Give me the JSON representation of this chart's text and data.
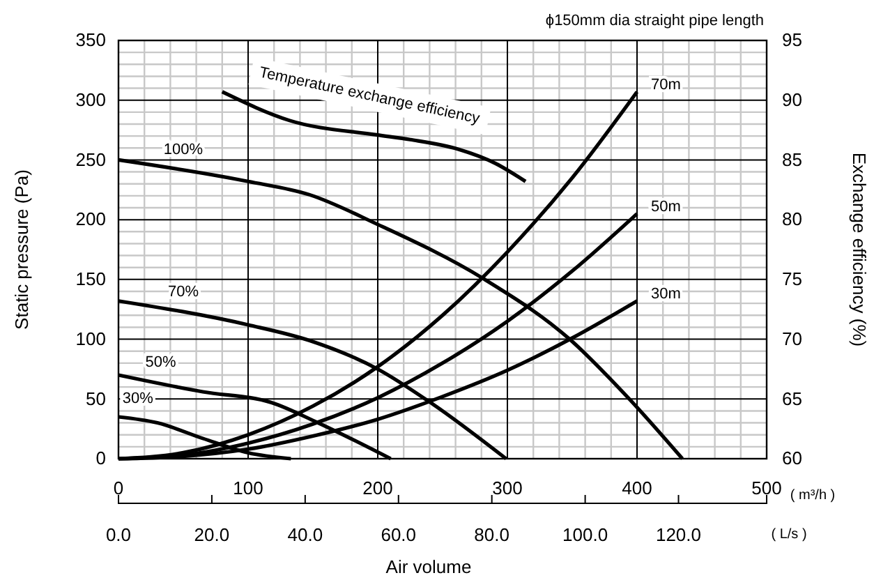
{
  "chart_data": {
    "type": "line",
    "title": "ϕ150mm dia straight pipe length",
    "xlabel": "Air volume",
    "ylabel": "Static pressure (Pa)",
    "y2label": "Exchange efficiency (%)",
    "x2label": "( L/s )",
    "annotations": [
      "( m³/h )"
    ],
    "xlim": [
      0,
      500
    ],
    "xticks": [
      0,
      100,
      200,
      300,
      400,
      500
    ],
    "ylim": [
      0,
      350
    ],
    "yticks": [
      0,
      50,
      100,
      150,
      200,
      250,
      300,
      350
    ],
    "y2lim": [
      60,
      95
    ],
    "y2ticks": [
      60,
      65,
      70,
      75,
      80,
      85,
      90,
      95
    ],
    "x2lim": [
      0,
      138.89
    ],
    "x2ticks": [
      {
        "value": 0,
        "label": "0.0"
      },
      {
        "value": 20,
        "label": "20.0"
      },
      {
        "value": 40,
        "label": "40.0"
      },
      {
        "value": 60,
        "label": "60.0"
      },
      {
        "value": 80,
        "label": "80.0"
      },
      {
        "value": 100,
        "label": "100.0"
      },
      {
        "value": 120,
        "label": "120.0"
      }
    ],
    "grid": true,
    "marker": "none",
    "line_style": "solid",
    "series": [
      {
        "name": "100%",
        "color": "#000000",
        "x": [
          0,
          100,
          147,
          200,
          281,
          348,
          394,
          435
        ],
        "values": [
          250,
          232,
          221,
          196,
          151,
          100,
          50,
          0
        ]
      },
      {
        "name": "70%",
        "color": "#000000",
        "x": [
          0,
          100,
          147,
          200,
          242,
          299
        ],
        "values": [
          132,
          112,
          99,
          75,
          46,
          0
        ]
      },
      {
        "name": "50%",
        "color": "#000000",
        "x": [
          0,
          65,
          118,
          154,
          210
        ],
        "values": [
          70,
          56,
          47,
          30,
          0
        ]
      },
      {
        "name": "30%",
        "color": "#000000",
        "x": [
          0,
          30,
          65,
          100,
          133
        ],
        "values": [
          35,
          30,
          17,
          5,
          0
        ]
      },
      {
        "name": "70m",
        "color": "#000000",
        "x": [
          0,
          50,
          100,
          150,
          200,
          250,
          300,
          350,
          400
        ],
        "values": [
          0,
          5,
          20,
          44,
          77,
          120,
          173,
          235,
          307
        ]
      },
      {
        "name": "50m",
        "color": "#000000",
        "x": [
          0,
          50,
          100,
          150,
          200,
          250,
          300,
          350,
          400
        ],
        "values": [
          0,
          3,
          13,
          29,
          51,
          80,
          115,
          157,
          205
        ]
      },
      {
        "name": "30m",
        "color": "#000000",
        "x": [
          0,
          50,
          100,
          150,
          200,
          250,
          300,
          350,
          400
        ],
        "values": [
          0,
          2,
          8,
          19,
          33,
          52,
          74,
          101,
          132
        ]
      },
      {
        "name": "Temperature exchange efficiency",
        "color": "#000000",
        "axis": "y2",
        "x": [
          80,
          132,
          199,
          225,
          262,
          291,
          314
        ],
        "values": [
          90.7,
          88.3,
          87.1,
          86.7,
          85.9,
          84.7,
          83.2
        ]
      }
    ]
  }
}
